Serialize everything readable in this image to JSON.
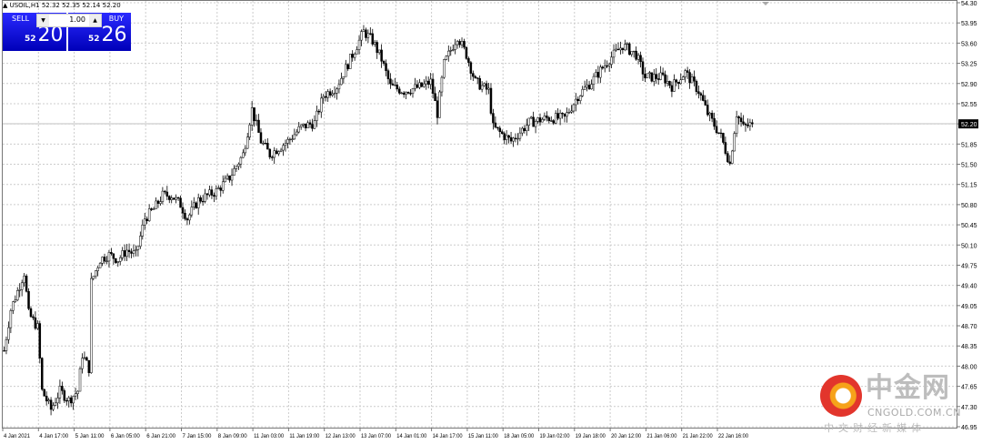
{
  "header": {
    "symbol_line": "USOIL,H1  52.32 52.35 52.14 52.20"
  },
  "ticket": {
    "sell_label": "SELL",
    "buy_label": "BUY",
    "lot": "1.00",
    "sell_small": "52",
    "sell_big": "20",
    "buy_small": "52",
    "buy_big": "26",
    "down_icon": "triangle-down",
    "up_icon": "triangle-up",
    "button_color": "#1010e0"
  },
  "watermark": {
    "name": "中金网",
    "url": "CNGOLD.COM.CN",
    "slogan": "中文财经新媒体"
  },
  "chart_data": {
    "type": "candlestick",
    "symbol": "USOIL",
    "timeframe": "H1",
    "ylim": [
      46.95,
      54.3
    ],
    "y_ticks": [
      "54.30",
      "53.95",
      "53.60",
      "53.25",
      "52.90",
      "52.55",
      "52.20",
      "51.85",
      "51.50",
      "51.15",
      "50.80",
      "50.45",
      "50.10",
      "49.75",
      "49.40",
      "49.05",
      "48.70",
      "48.35",
      "48.00",
      "47.65",
      "47.30",
      "46.95"
    ],
    "current_price": "52.20",
    "x_ticks": [
      "4 Jan 2021",
      "4 Jan 17:00",
      "5 Jan 11:00",
      "6 Jan 05:00",
      "6 Jan 21:00",
      "7 Jan 15:00",
      "8 Jan 09:00",
      "11 Jan 03:00",
      "11 Jan 19:00",
      "12 Jan 13:00",
      "13 Jan 07:00",
      "14 Jan 01:00",
      "14 Jan 17:00",
      "15 Jan 11:00",
      "18 Jan 05:00",
      "19 Jan 02:00",
      "19 Jan 18:00",
      "20 Jan 12:00",
      "21 Jan 06:00",
      "21 Jan 22:00",
      "22 Jan 16:00"
    ],
    "bars_per_x_tick": 16,
    "grid": true,
    "close_path": [
      [
        0,
        48.27
      ],
      [
        3,
        48.98
      ],
      [
        9,
        49.62
      ],
      [
        11,
        48.91
      ],
      [
        15,
        48.67
      ],
      [
        17,
        47.57
      ],
      [
        21,
        47.25
      ],
      [
        25,
        47.57
      ],
      [
        29,
        47.41
      ],
      [
        33,
        47.57
      ],
      [
        35,
        48.2
      ],
      [
        38,
        47.96
      ],
      [
        39,
        49.46
      ],
      [
        43,
        49.85
      ],
      [
        47,
        49.93
      ],
      [
        51,
        49.85
      ],
      [
        55,
        50.01
      ],
      [
        59,
        49.93
      ],
      [
        63,
        50.56
      ],
      [
        67,
        50.72
      ],
      [
        71,
        50.96
      ],
      [
        75,
        50.96
      ],
      [
        79,
        50.8
      ],
      [
        82,
        50.56
      ],
      [
        87,
        50.88
      ],
      [
        95,
        51.03
      ],
      [
        101,
        51.27
      ],
      [
        107,
        51.67
      ],
      [
        111,
        52.45
      ],
      [
        115,
        51.9
      ],
      [
        119,
        51.67
      ],
      [
        127,
        51.9
      ],
      [
        133,
        52.14
      ],
      [
        139,
        52.22
      ],
      [
        143,
        52.69
      ],
      [
        149,
        52.85
      ],
      [
        155,
        53.32
      ],
      [
        161,
        53.8
      ],
      [
        165,
        53.64
      ],
      [
        169,
        53.32
      ],
      [
        173,
        52.85
      ],
      [
        179,
        52.77
      ],
      [
        187,
        52.85
      ],
      [
        191,
        52.93
      ],
      [
        194,
        52.38
      ],
      [
        197,
        53.24
      ],
      [
        203,
        53.72
      ],
      [
        207,
        53.4
      ],
      [
        211,
        52.93
      ],
      [
        217,
        52.77
      ],
      [
        219,
        52.14
      ],
      [
        227,
        51.9
      ],
      [
        235,
        52.22
      ],
      [
        243,
        52.3
      ],
      [
        251,
        52.3
      ],
      [
        257,
        52.69
      ],
      [
        263,
        52.93
      ],
      [
        271,
        53.32
      ],
      [
        277,
        53.56
      ],
      [
        283,
        53.4
      ],
      [
        287,
        53.01
      ],
      [
        295,
        53.01
      ],
      [
        299,
        52.85
      ],
      [
        305,
        53.09
      ],
      [
        311,
        52.77
      ],
      [
        315,
        52.38
      ],
      [
        321,
        51.98
      ],
      [
        325,
        51.51
      ],
      [
        328,
        52.38
      ],
      [
        331,
        52.14
      ],
      [
        335,
        52.2
      ]
    ]
  }
}
